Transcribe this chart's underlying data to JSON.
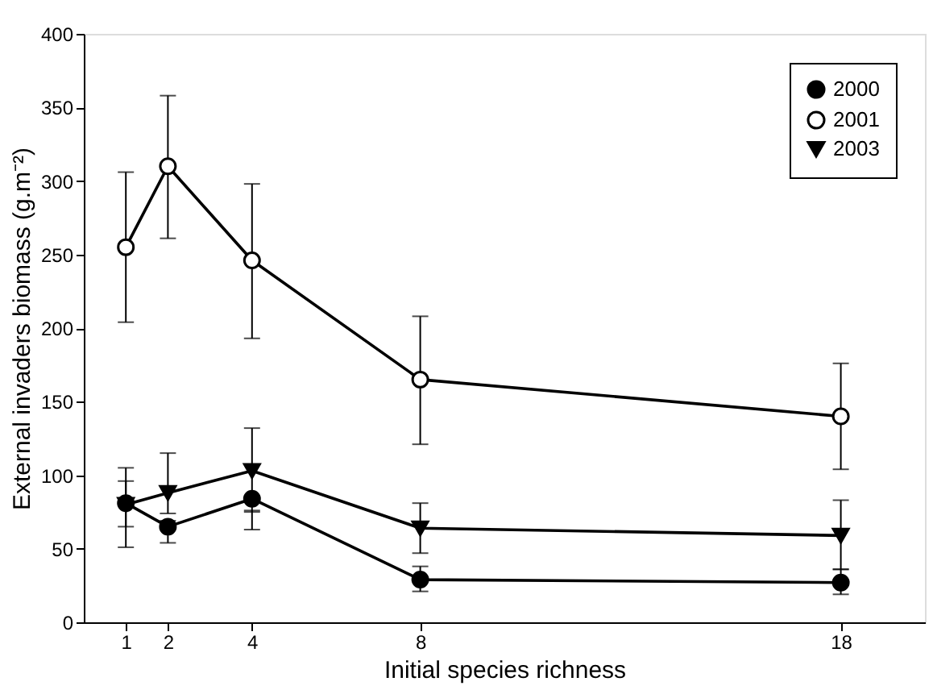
{
  "chart_data": {
    "type": "line",
    "xlabel": "Initial species richness",
    "ylabel": "External invaders biomass (g.m⁻²)",
    "x": [
      1,
      2,
      4,
      8,
      18
    ],
    "xlim": [
      0,
      20
    ],
    "xticks": [
      1,
      2,
      4,
      8,
      18
    ],
    "ylim": [
      0,
      400
    ],
    "yticks": [
      0,
      50,
      100,
      150,
      200,
      250,
      300,
      350,
      400
    ],
    "legend": "top right",
    "grid": false,
    "line_style": "solid",
    "series": [
      {
        "name": "2000",
        "color": "#000000",
        "marker": "circle",
        "values": [
          81,
          65,
          84,
          29,
          27
        ],
        "errors": [
          [
            65,
            96
          ],
          [
            54,
            69
          ],
          [
            63,
            76
          ],
          [
            21,
            38
          ],
          [
            19,
            36
          ]
        ]
      },
      {
        "name": "2001",
        "color": "#000000",
        "marker": "circle",
        "values": [
          255,
          310,
          246,
          165,
          140
        ],
        "errors": [
          [
            204,
            306
          ],
          [
            261,
            358
          ],
          [
            193,
            298
          ],
          [
            121,
            208
          ],
          [
            104,
            176
          ]
        ]
      },
      {
        "name": "2003",
        "color": "#000000",
        "marker": "triangle",
        "values": [
          80,
          88,
          103,
          64,
          59
        ],
        "errors": [
          [
            51,
            105
          ],
          [
            74,
            115
          ],
          [
            75,
            132
          ],
          [
            47,
            81
          ],
          [
            36,
            83
          ]
        ]
      }
    ]
  }
}
